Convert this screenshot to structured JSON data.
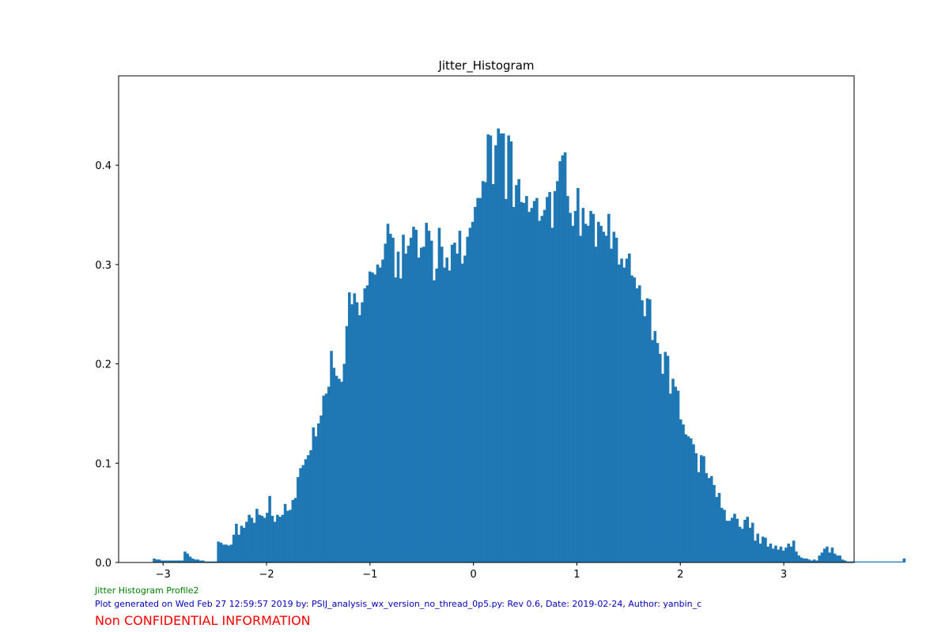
{
  "footer": {
    "profile": "Jitter Histogram Profile2",
    "generated": "Plot generated on Wed Feb 27 12:59:57 2019 by: PSIJ_analysis_wx_version_no_thread_0p5.py: Rev 0.6, Date: 2019-02-24, Author: yanbin_c",
    "confidential": "Non CONFIDENTIAL INFORMATION"
  },
  "colors": {
    "bar": "#1f77b4",
    "profile_text": "#008000",
    "generated_text": "#0000bb",
    "confidential_text": "#ff0000"
  },
  "chart_data": {
    "type": "bar",
    "title": "Jitter_Histogram",
    "xlabel": "",
    "ylabel": "",
    "xlim": [
      -3.43,
      3.68
    ],
    "ylim": [
      0,
      0.49
    ],
    "xticks": [
      -3,
      -2,
      -1,
      0,
      1,
      2,
      3
    ],
    "xtick_labels": [
      "−3",
      "−2",
      "−1",
      "0",
      "1",
      "2",
      "3"
    ],
    "yticks": [
      0,
      0.1,
      0.2,
      0.3,
      0.4
    ],
    "ytick_labels": [
      "0.0",
      "0.1",
      "0.2",
      "0.3",
      "0.4"
    ],
    "grid": false,
    "bin_start": -3.1,
    "bin_width": 0.02483,
    "values": [
      0.004,
      0.003,
      0.003,
      0.002,
      0.002,
      0.002,
      0.002,
      0.002,
      0.002,
      0.002,
      0.002,
      0.002,
      0.011,
      0.009,
      0.006,
      0.004,
      0.003,
      0.003,
      0.002,
      0.002,
      0.001,
      0.001,
      0.001,
      0.001,
      0.001,
      0.021,
      0.02,
      0.018,
      0.018,
      0.017,
      0.018,
      0.028,
      0.039,
      0.028,
      0.037,
      0.035,
      0.041,
      0.048,
      0.045,
      0.04,
      0.054,
      0.048,
      0.047,
      0.045,
      0.05,
      0.067,
      0.047,
      0.041,
      0.048,
      0.046,
      0.048,
      0.059,
      0.052,
      0.053,
      0.063,
      0.065,
      0.086,
      0.095,
      0.098,
      0.104,
      0.108,
      0.113,
      0.136,
      0.127,
      0.14,
      0.148,
      0.168,
      0.17,
      0.177,
      0.213,
      0.196,
      0.188,
      0.185,
      0.182,
      0.2,
      0.238,
      0.272,
      0.26,
      0.271,
      0.262,
      0.249,
      0.262,
      0.276,
      0.279,
      0.293,
      0.292,
      0.29,
      0.3,
      0.297,
      0.305,
      0.321,
      0.341,
      0.331,
      0.327,
      0.287,
      0.313,
      0.286,
      0.33,
      0.311,
      0.319,
      0.327,
      0.338,
      0.335,
      0.307,
      0.317,
      0.318,
      0.342,
      0.334,
      0.324,
      0.284,
      0.296,
      0.337,
      0.318,
      0.297,
      0.307,
      0.294,
      0.32,
      0.322,
      0.311,
      0.334,
      0.301,
      0.309,
      0.328,
      0.337,
      0.343,
      0.358,
      0.367,
      0.367,
      0.384,
      0.383,
      0.431,
      0.43,
      0.381,
      0.42,
      0.437,
      0.432,
      0.432,
      0.366,
      0.43,
      0.424,
      0.358,
      0.38,
      0.386,
      0.363,
      0.362,
      0.369,
      0.353,
      0.357,
      0.364,
      0.367,
      0.344,
      0.349,
      0.355,
      0.368,
      0.373,
      0.337,
      0.374,
      0.384,
      0.404,
      0.41,
      0.413,
      0.369,
      0.352,
      0.339,
      0.354,
      0.377,
      0.329,
      0.357,
      0.341,
      0.339,
      0.354,
      0.351,
      0.318,
      0.343,
      0.339,
      0.333,
      0.329,
      0.351,
      0.316,
      0.333,
      0.327,
      0.3,
      0.306,
      0.297,
      0.306,
      0.311,
      0.289,
      0.287,
      0.276,
      0.279,
      0.264,
      0.248,
      0.266,
      0.265,
      0.224,
      0.233,
      0.221,
      0.21,
      0.19,
      0.212,
      0.208,
      0.17,
      0.185,
      0.177,
      0.173,
      0.144,
      0.139,
      0.129,
      0.127,
      0.125,
      0.119,
      0.11,
      0.091,
      0.108,
      0.107,
      0.09,
      0.085,
      0.087,
      0.078,
      0.066,
      0.07,
      0.055,
      0.053,
      0.042,
      0.042,
      0.045,
      0.049,
      0.044,
      0.036,
      0.034,
      0.043,
      0.046,
      0.035,
      0.04,
      0.022,
      0.029,
      0.019,
      0.026,
      0.025,
      0.016,
      0.019,
      0.014,
      0.017,
      0.013,
      0.016,
      0.012,
      0.015,
      0.019,
      0.016,
      0.022,
      0.011,
      0.007,
      0.005,
      0.004,
      0.004,
      0.003,
      0.002,
      0.003,
      0.002,
      0.007,
      0.01,
      0.014,
      0.016,
      0.01,
      0.015,
      0.009,
      0.007,
      0.007,
      0.003,
      0.002,
      0.001,
      0.001,
      0.001,
      0.001,
      0.001,
      0.001,
      0.001,
      0.001,
      0.001,
      0.001,
      0.001,
      0.001,
      0.001,
      0.001,
      0.001,
      0.001,
      0.001,
      0.001,
      0.001,
      0.001,
      0.001,
      0.001,
      0.004
    ]
  }
}
